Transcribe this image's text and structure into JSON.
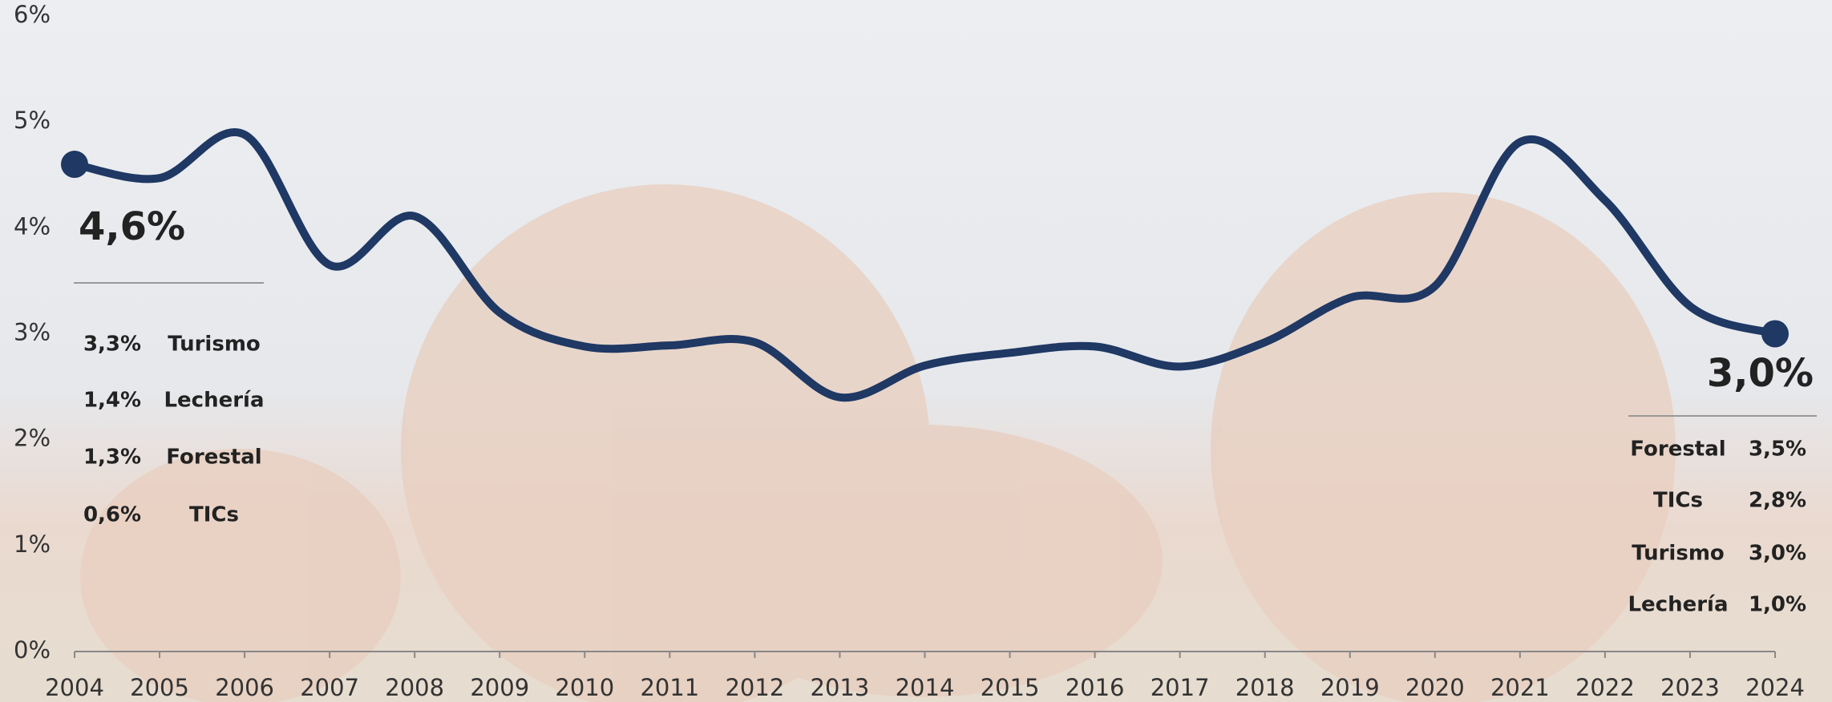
{
  "chart_data": {
    "type": "line",
    "x": [
      2004,
      2005,
      2006,
      2007,
      2008,
      2009,
      2010,
      2011,
      2012,
      2013,
      2014,
      2015,
      2016,
      2017,
      2018,
      2019,
      2020,
      2021,
      2022,
      2023,
      2024
    ],
    "xlim": [
      2004,
      2024
    ],
    "series": [
      {
        "color": "#1f3864",
        "values": [
          4.6,
          4.47,
          4.88,
          3.65,
          4.11,
          3.2,
          2.88,
          2.89,
          2.92,
          2.4,
          2.7,
          2.82,
          2.88,
          2.69,
          2.92,
          3.34,
          3.45,
          4.81,
          4.26,
          3.26,
          3.0
        ]
      }
    ],
    "ylim": [
      0,
      6
    ],
    "yticks": [
      {
        "value": 0,
        "label": "0%"
      },
      {
        "value": 1,
        "label": "1%"
      },
      {
        "value": 2,
        "label": "2%"
      },
      {
        "value": 3,
        "label": "3%"
      },
      {
        "value": 4,
        "label": "4%"
      },
      {
        "value": 5,
        "label": "5%"
      },
      {
        "value": 6,
        "label": "6%"
      }
    ],
    "annotations": {
      "start": {
        "label": "4,6%",
        "items": [
          {
            "value": "3,3%",
            "label": "Turismo"
          },
          {
            "value": "1,4%",
            "label": "Lechería"
          },
          {
            "value": "1,3%",
            "label": "Forestal"
          },
          {
            "value": "0,6%",
            "label": "TICs"
          }
        ]
      },
      "end": {
        "label": "3,0%",
        "items": [
          {
            "label": "Forestal",
            "value": "3,5%"
          },
          {
            "label": "TICs",
            "value": "2,8%"
          },
          {
            "label": "Turismo",
            "value": "3,0%"
          },
          {
            "label": "Lechería",
            "value": "1,0%"
          }
        ]
      }
    }
  }
}
